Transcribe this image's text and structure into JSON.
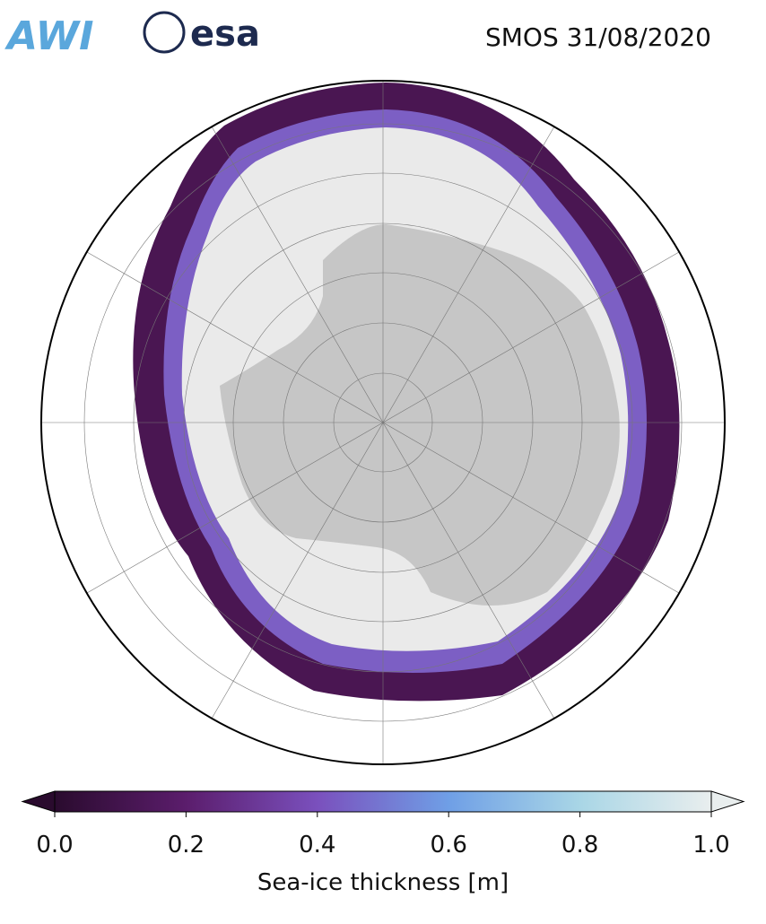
{
  "header": {
    "logos": [
      "AWI",
      "esa"
    ],
    "title": "SMOS 31/08/2020"
  },
  "colorbar": {
    "label": "Sea-ice thickness [m]",
    "lim": [
      0,
      1
    ],
    "ticks": [
      {
        "value": 0,
        "label": "0.0"
      },
      {
        "value": 0.2,
        "label": "0.2"
      },
      {
        "value": 0.4,
        "label": "0.4"
      },
      {
        "value": 0.6,
        "label": "0.6"
      },
      {
        "value": 0.8,
        "label": "0.8"
      },
      {
        "value": 1,
        "label": "1.0"
      }
    ],
    "colors": [
      "#2a0b2e",
      "#5b1d6c",
      "#7a50bd",
      "#6f9fe6",
      "#a9d6e6",
      "#e9eeee"
    ],
    "extend": "both"
  }
}
